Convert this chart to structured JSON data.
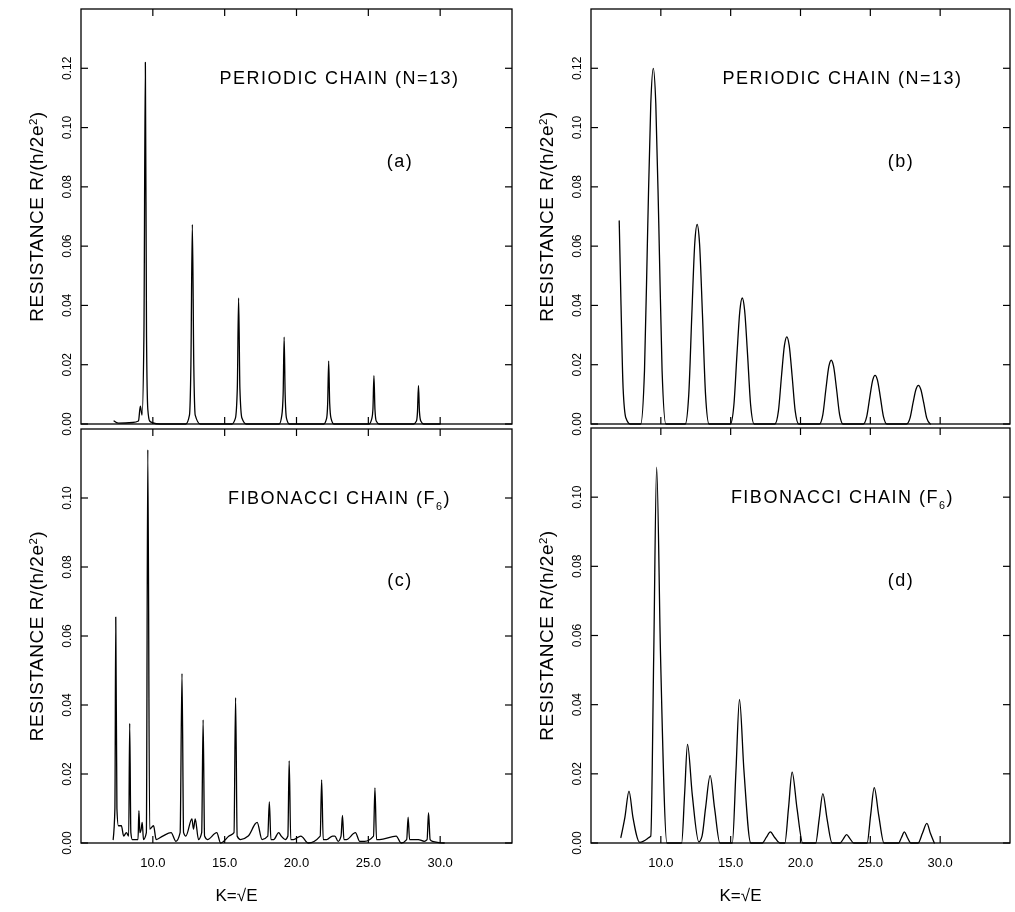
{
  "chart_data": [
    {
      "type": "line",
      "ylabel": "RESISTANCE R/(h/2e$^{2}$)",
      "annotations": [
        "PERIODIC CHAIN (N=13)",
        "(a)"
      ],
      "color": "#000000",
      "tick_labels": "y",
      "xlim": [
        5,
        35
      ],
      "xticks": [
        {
          "value": 10,
          "label": null
        },
        {
          "value": 15,
          "label": null
        },
        {
          "value": 20,
          "label": null
        },
        {
          "value": 25,
          "label": null
        },
        {
          "value": 30,
          "label": null
        }
      ],
      "ylim": [
        0,
        0.14
      ],
      "yticks": [
        {
          "value": 0,
          "label": "0.00"
        },
        {
          "value": 0.02,
          "label": "0.02"
        },
        {
          "value": 0.04,
          "label": "0.04"
        },
        {
          "value": 0.06,
          "label": "0.06"
        },
        {
          "value": 0.08,
          "label": "0.08"
        },
        {
          "value": 0.1,
          "label": "0.10"
        },
        {
          "value": 0.12,
          "label": "0.12"
        }
      ],
      "x": [
        7.3,
        7.6,
        8.6,
        9.0,
        9.13,
        9.25,
        9.38,
        9.48,
        9.56,
        9.65,
        9.78,
        9.95,
        10.5,
        12.3,
        12.55,
        12.65,
        12.75,
        12.85,
        12.95,
        13.3,
        15.5,
        15.75,
        15.88,
        15.97,
        16.06,
        16.2,
        16.5,
        18.8,
        18.98,
        19.07,
        19.14,
        19.21,
        19.3,
        19.5,
        21.9,
        22.1,
        22.17,
        22.24,
        22.31,
        22.4,
        22.6,
        25.05,
        25.25,
        25.32,
        25.39,
        25.46,
        25.55,
        25.75,
        28.15,
        28.35,
        28.42,
        28.49,
        28.56,
        28.65,
        28.85,
        30.0
      ],
      "values": [
        0.001,
        0.0003,
        0.0005,
        0.001,
        0.006,
        0.003,
        0.03,
        0.122,
        0.03,
        0.005,
        0.001,
        0.0005,
        0,
        0,
        0.003,
        0.02,
        0.0673,
        0.02,
        0.003,
        0,
        0,
        0.002,
        0.012,
        0.0425,
        0.012,
        0.002,
        0,
        0,
        0.003,
        0.01,
        0.0293,
        0.01,
        0.002,
        0,
        0,
        0.002,
        0.007,
        0.0212,
        0.007,
        0.002,
        0,
        0,
        0.002,
        0.005,
        0.0163,
        0.005,
        0.001,
        0,
        0,
        0.001,
        0.004,
        0.013,
        0.004,
        0.001,
        0,
        0
      ]
    },
    {
      "type": "line",
      "ylabel": "RESISTANCE R/(h/2e$^{2}$)",
      "annotations": [
        "PERIODIC CHAIN (N=13)",
        "(b)"
      ],
      "color": "#000000",
      "tick_labels": "y",
      "xlim": [
        5,
        35
      ],
      "xticks": [
        {
          "value": 10,
          "label": null
        },
        {
          "value": 15,
          "label": null
        },
        {
          "value": 20,
          "label": null
        },
        {
          "value": 25,
          "label": null
        },
        {
          "value": 30,
          "label": null
        }
      ],
      "ylim": [
        0,
        0.14
      ],
      "yticks": [
        {
          "value": 0,
          "label": "0.00"
        },
        {
          "value": 0.02,
          "label": "0.02"
        },
        {
          "value": 0.04,
          "label": "0.04"
        },
        {
          "value": 0.06,
          "label": "0.06"
        },
        {
          "value": 0.08,
          "label": "0.08"
        },
        {
          "value": 0.1,
          "label": "0.10"
        },
        {
          "value": 0.12,
          "label": "0.12"
        }
      ],
      "x": [
        7.02,
        7.15,
        7.3,
        7.5,
        7.8,
        8.56,
        8.83,
        9.06,
        9.28,
        9.46,
        9.64,
        9.86,
        10.09,
        10.36,
        11.75,
        12.0,
        12.22,
        12.43,
        12.6,
        12.77,
        12.98,
        13.2,
        13.45,
        14.98,
        15.23,
        15.45,
        15.66,
        15.83,
        16.0,
        16.21,
        16.43,
        16.68,
        18.17,
        18.42,
        18.64,
        18.85,
        19.02,
        19.19,
        19.4,
        19.62,
        19.87,
        21.35,
        21.6,
        21.82,
        22.03,
        22.2,
        22.37,
        22.58,
        22.8,
        23.05,
        24.49,
        24.74,
        24.96,
        25.17,
        25.34,
        25.51,
        25.72,
        25.94,
        26.19,
        27.59,
        27.84,
        28.06,
        28.27,
        28.44,
        28.61,
        28.82,
        29.04,
        29.29
      ],
      "values": [
        0.0685,
        0.04,
        0.012,
        0.002,
        0,
        0,
        0.018,
        0.066,
        0.108,
        0.12,
        0.108,
        0.066,
        0.018,
        0,
        0,
        0.01,
        0.037,
        0.061,
        0.0673,
        0.061,
        0.037,
        0.01,
        0,
        0,
        0.0064,
        0.0234,
        0.0383,
        0.0425,
        0.0383,
        0.0234,
        0.0064,
        0,
        0,
        0.0044,
        0.0162,
        0.0265,
        0.0294,
        0.0265,
        0.0162,
        0.0044,
        0,
        0,
        0.0032,
        0.0118,
        0.0194,
        0.0215,
        0.0194,
        0.0118,
        0.0032,
        0,
        0,
        0.0025,
        0.009,
        0.0148,
        0.0164,
        0.0148,
        0.009,
        0.0025,
        0,
        0,
        0.002,
        0.0072,
        0.0117,
        0.013,
        0.0117,
        0.0072,
        0.002,
        0
      ]
    },
    {
      "type": "line",
      "xlabel": "K=√E",
      "ylabel": "RESISTANCE R/(h/2e$^{2}$)",
      "annotations": [
        "FIBONACCI CHAIN (F$_{6}$)",
        "(c)"
      ],
      "color": "#000000",
      "xlim": [
        5,
        35
      ],
      "xticks": [
        {
          "value": 10,
          "label": "10.0"
        },
        {
          "value": 15,
          "label": "15.0"
        },
        {
          "value": 20,
          "label": "20.0"
        },
        {
          "value": 25,
          "label": "25.0"
        },
        {
          "value": 30,
          "label": "30.0"
        }
      ],
      "ylim": [
        0,
        0.12
      ],
      "yticks": [
        {
          "value": 0,
          "label": "0.00"
        },
        {
          "value": 0.02,
          "label": "0.02"
        },
        {
          "value": 0.04,
          "label": "0.04"
        },
        {
          "value": 0.06,
          "label": "0.06"
        },
        {
          "value": 0.08,
          "label": "0.08"
        },
        {
          "value": 0.1,
          "label": "0.10"
        }
      ],
      "x": [
        7.24,
        7.36,
        7.42,
        7.5,
        7.6,
        7.81,
        7.97,
        8.16,
        8.32,
        8.39,
        8.47,
        8.57,
        8.97,
        9.03,
        9.1,
        9.19,
        9.26,
        9.35,
        9.55,
        9.65,
        9.78,
        10.05,
        10.23,
        10.69,
        11.27,
        11.61,
        11.9,
        12.03,
        12.14,
        12.3,
        12.72,
        12.83,
        12.95,
        13.18,
        13.4,
        13.5,
        13.6,
        13.8,
        14.45,
        14.72,
        15.3,
        15.65,
        15.76,
        15.87,
        16.1,
        16.64,
        17.26,
        17.6,
        18.0,
        18.11,
        18.22,
        18.41,
        18.76,
        18.94,
        19.22,
        19.4,
        19.49,
        19.6,
        19.79,
        20.3,
        20.83,
        21.65,
        21.75,
        21.86,
        22.1,
        22.51,
        22.67,
        22.9,
        23.1,
        23.2,
        23.3,
        23.48,
        24.1,
        24.4,
        24.75,
        25.36,
        25.46,
        25.57,
        25.78,
        26.94,
        27.28,
        27.67,
        27.77,
        27.87,
        28.09,
        28.48,
        28.89,
        29.09,
        29.19,
        29.3,
        29.47,
        30.28
      ],
      "values": [
        0.001,
        0.01,
        0.0655,
        0.01,
        0.005,
        0.005,
        0.002,
        0.003,
        0.002,
        0.0347,
        0.003,
        0.001,
        0.001,
        0.0094,
        0.003,
        0.004,
        0.006,
        0.001,
        0.003,
        0.114,
        0.004,
        0.005,
        0.001,
        0.002,
        0.003,
        0.0005,
        0.003,
        0.0491,
        0.003,
        0.002,
        0.007,
        0.004,
        0.007,
        0.001,
        0.003,
        0.0357,
        0.002,
        0.001,
        0.003,
        0,
        0.002,
        0.003,
        0.0421,
        0.002,
        0.001,
        0.002,
        0.006,
        0.001,
        0.002,
        0.0119,
        0.001,
        0.001,
        0.003,
        0.002,
        0.001,
        0.002,
        0.0238,
        0.001,
        0.001,
        0.002,
        0,
        0.002,
        0.0183,
        0.001,
        0.001,
        0.002,
        0.002,
        0.0005,
        0.002,
        0.008,
        0.001,
        0.001,
        0.003,
        0.0005,
        0.0005,
        0.002,
        0.016,
        0.001,
        0.001,
        0.002,
        0,
        0.001,
        0.0075,
        0.001,
        0.001,
        0.001,
        0.0005,
        0.001,
        0.0088,
        0.001,
        0.0005,
        0
      ]
    },
    {
      "type": "line",
      "xlabel": "K=√E",
      "ylabel": "RESISTANCE R/(h/2e$^{2}$)",
      "annotations": [
        "FIBONACCI CHAIN (F$_{6}$)",
        "(d)"
      ],
      "color": "#000000",
      "xlim": [
        5,
        35
      ],
      "xticks": [
        {
          "value": 10,
          "label": "10.0"
        },
        {
          "value": 15,
          "label": "15.0"
        },
        {
          "value": 20,
          "label": "20.0"
        },
        {
          "value": 25,
          "label": "25.0"
        },
        {
          "value": 30,
          "label": "30.0"
        }
      ],
      "ylim": [
        0,
        0.12
      ],
      "yticks": [
        {
          "value": 0,
          "label": "0.00"
        },
        {
          "value": 0.02,
          "label": "0.02"
        },
        {
          "value": 0.04,
          "label": "0.04"
        },
        {
          "value": 0.06,
          "label": "0.06"
        },
        {
          "value": 0.08,
          "label": "0.08"
        },
        {
          "value": 0.1,
          "label": "0.10"
        }
      ],
      "x": [
        7.14,
        7.43,
        7.72,
        8.0,
        8.49,
        9.12,
        9.28,
        9.49,
        9.7,
        9.98,
        10.44,
        10.63,
        11.49,
        11.7,
        11.91,
        12.25,
        12.72,
        12.95,
        13.2,
        13.53,
        13.85,
        14.23,
        15.12,
        15.38,
        15.63,
        15.95,
        16.44,
        17.26,
        17.55,
        17.84,
        18.15,
        18.53,
        18.88,
        19.14,
        19.4,
        19.75,
        20.16,
        21.09,
        21.34,
        21.6,
        21.9,
        22.26,
        22.84,
        23.07,
        23.3,
        23.55,
        23.81,
        24.77,
        25.02,
        25.28,
        25.6,
        25.98,
        27.02,
        27.23,
        27.44,
        27.65,
        27.91,
        28.42,
        28.73,
        29.05,
        29.3,
        29.58
      ],
      "values": [
        0.0016,
        0.0075,
        0.015,
        0.0075,
        0.0002,
        0.0015,
        0.002,
        0.054,
        0.1087,
        0.054,
        0,
        0,
        0,
        0.014,
        0.0285,
        0.014,
        0.0003,
        0.002,
        0.01,
        0.0195,
        0.01,
        0,
        0,
        0.021,
        0.0415,
        0.021,
        0,
        0,
        0.0016,
        0.0032,
        0.0016,
        0,
        0,
        0.01,
        0.0205,
        0.01,
        0,
        0,
        0.007,
        0.0143,
        0.007,
        0,
        0,
        0.0012,
        0.0024,
        0.0012,
        0,
        0,
        0.008,
        0.016,
        0.008,
        0,
        0,
        0.0016,
        0.0032,
        0.0016,
        0,
        0,
        0.0028,
        0.0057,
        0.0028,
        0
      ]
    }
  ]
}
